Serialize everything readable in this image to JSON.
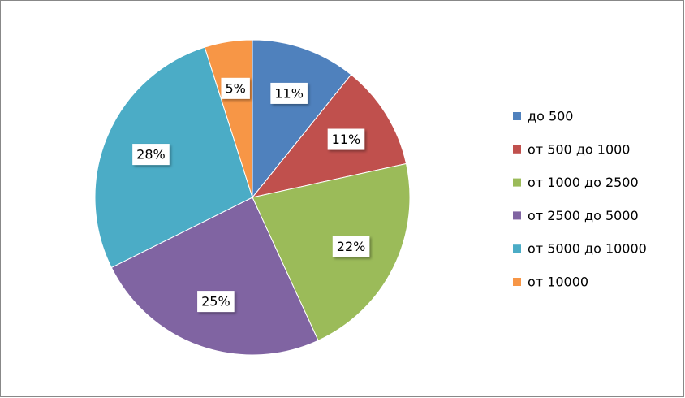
{
  "chart_data": {
    "type": "pie",
    "categories": [
      "до 500",
      "от 500 до 1000",
      "от 1000 до 2500",
      "от 2500 до 5000",
      "от 5000 до 10000",
      "от 10000"
    ],
    "values": [
      11,
      11,
      22,
      25,
      28,
      5
    ],
    "value_labels": [
      "11%",
      "11%",
      "22%",
      "25%",
      "28%",
      "5%"
    ],
    "colors": [
      "#4f81bd",
      "#c0504d",
      "#9bbb59",
      "#8064a2",
      "#4bacc6",
      "#f79646"
    ],
    "legend": "right"
  }
}
